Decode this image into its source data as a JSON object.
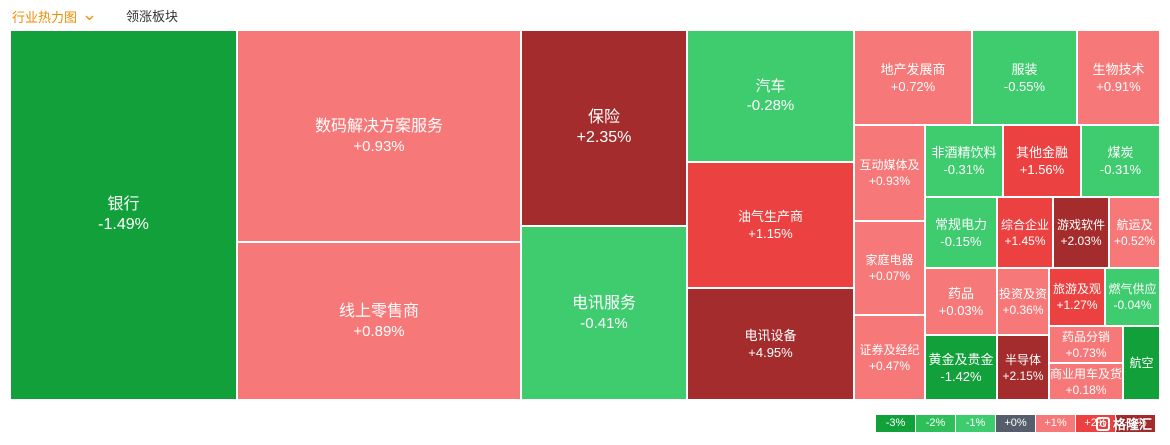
{
  "tabs": {
    "active_label": "行业热力图",
    "inactive_label": "领涨板块"
  },
  "colors": {
    "strong_down": "#12a03a",
    "down": "#2ebf5b",
    "mild_down": "#3ecc6f",
    "flat": "#565e6b",
    "mild_up": "#f77878",
    "up": "#ec4141",
    "strong_up": "#a52c2c"
  },
  "legend": [
    "-3%",
    "-2%",
    "-1%",
    "+0%",
    "+1%",
    "+2%",
    "+3%"
  ],
  "watermark": "格隆汇",
  "sectors": [
    {
      "name": "银行",
      "change": "-1.49%"
    },
    {
      "name": "数码解决方案服务",
      "change": "+0.93%"
    },
    {
      "name": "线上零售商",
      "change": "+0.89%"
    },
    {
      "name": "保险",
      "change": "+2.35%"
    },
    {
      "name": "电讯服务",
      "change": "-0.41%"
    },
    {
      "name": "汽车",
      "change": "-0.28%"
    },
    {
      "name": "油气生产商",
      "change": "+1.15%"
    },
    {
      "name": "电讯设备",
      "change": "+4.95%"
    },
    {
      "name": "地产发展商",
      "change": "+0.72%"
    },
    {
      "name": "服装",
      "change": "-0.55%"
    },
    {
      "name": "生物技术",
      "change": "+0.91%"
    },
    {
      "name": "互动媒体及",
      "change": "+0.93%"
    },
    {
      "name": "非酒精饮料",
      "change": "-0.31%"
    },
    {
      "name": "其他金融",
      "change": "+1.56%"
    },
    {
      "name": "煤炭",
      "change": "-0.31%"
    },
    {
      "name": "家庭电器",
      "change": "+0.07%"
    },
    {
      "name": "常规电力",
      "change": "-0.15%"
    },
    {
      "name": "综合企业",
      "change": "+1.45%"
    },
    {
      "name": "游戏软件",
      "change": "+2.03%"
    },
    {
      "name": "航运及",
      "change": "+0.52%"
    },
    {
      "name": "药品",
      "change": "+0.03%"
    },
    {
      "name": "投资及资",
      "change": "+0.36%"
    },
    {
      "name": "旅游及观",
      "change": "+1.27%"
    },
    {
      "name": "燃气供应",
      "change": "-0.04%"
    },
    {
      "name": "证券及经纪",
      "change": "+0.47%"
    },
    {
      "name": "黄金及贵金",
      "change": "-1.42%"
    },
    {
      "name": "半导体",
      "change": "+2.15%"
    },
    {
      "name": "药品分销",
      "change": "+0.73%"
    },
    {
      "name": "商业用车及货",
      "change": "+0.18%"
    },
    {
      "name": "航空",
      "change": ""
    }
  ]
}
